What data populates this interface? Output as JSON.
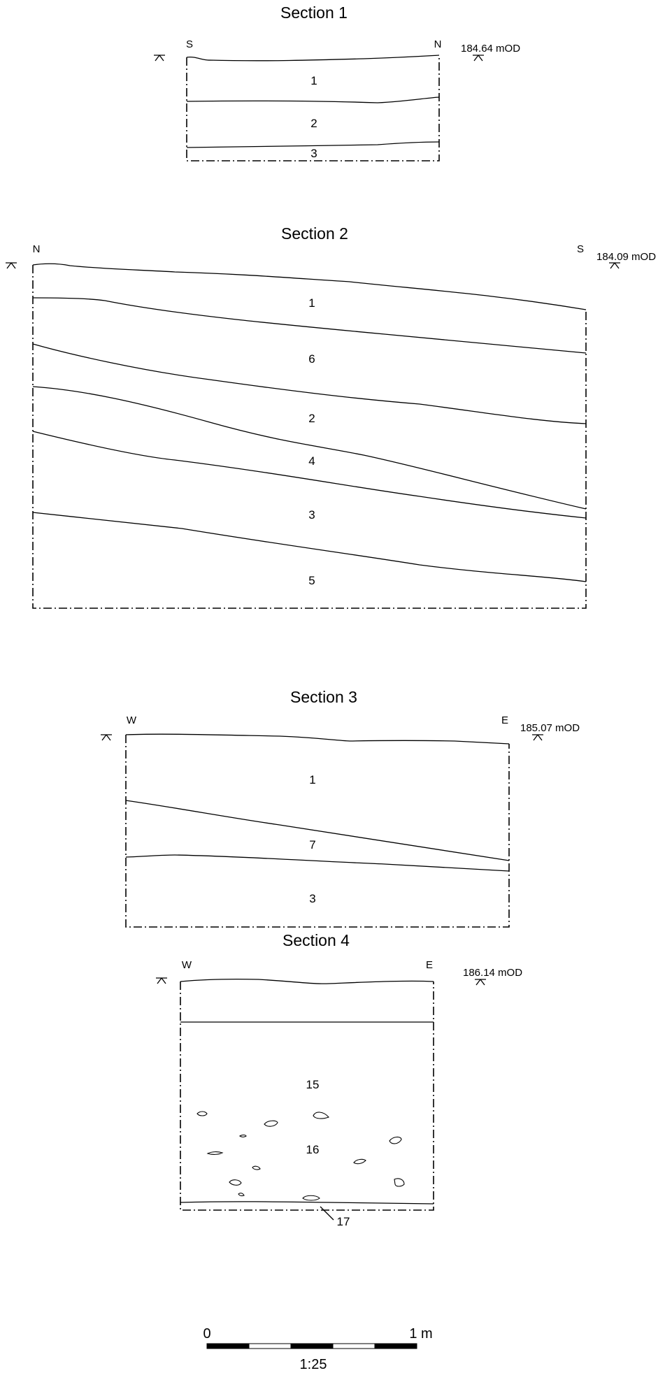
{
  "sections": [
    {
      "title": "Section 1",
      "start_label": "S",
      "end_label": "N",
      "datum": "184.64 mOD",
      "layers": [
        "1",
        "2",
        "3"
      ]
    },
    {
      "title": "Section 2",
      "start_label": "N",
      "end_label": "S",
      "datum": "184.09 mOD",
      "layers": [
        "1",
        "6",
        "2",
        "4",
        "3",
        "5"
      ]
    },
    {
      "title": "Section 3",
      "start_label": "W",
      "end_label": "E",
      "datum": "185.07 mOD",
      "layers": [
        "1",
        "7",
        "3"
      ]
    },
    {
      "title": "Section 4",
      "start_label": "W",
      "end_label": "E",
      "datum": "186.14 mOD",
      "layers": [
        "15",
        "16",
        "17"
      ]
    }
  ],
  "scale_bar": {
    "start_label": "0",
    "end_label": "1 m",
    "ratio": "1:25"
  }
}
